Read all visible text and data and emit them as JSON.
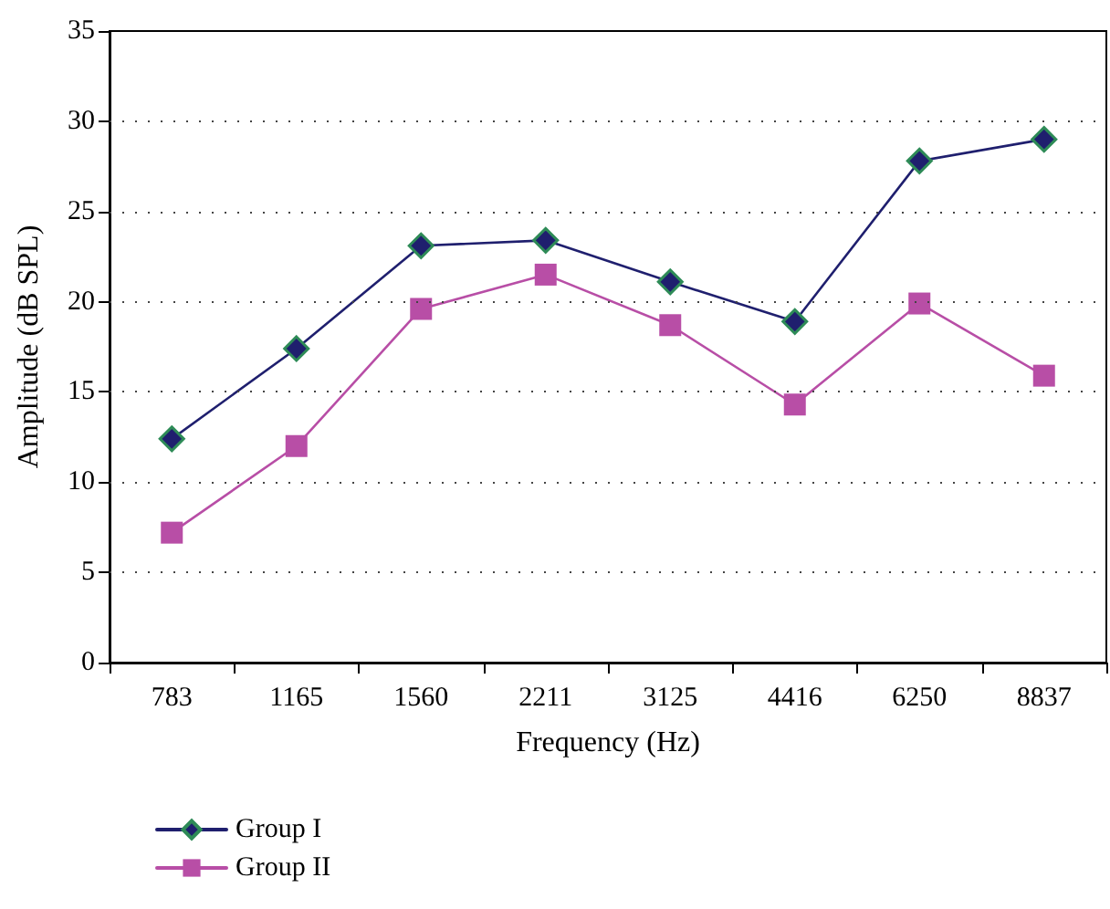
{
  "chart_data": {
    "type": "line",
    "xlabel": "Frequency (Hz)",
    "ylabel": "Amplitude (dB SPL)",
    "categories": [
      "783",
      "1165",
      "1560",
      "2211",
      "3125",
      "4416",
      "6250",
      "8837"
    ],
    "series": [
      {
        "name": "Group I",
        "color": "#1f1f6e",
        "marker": "diamond",
        "values": [
          12.4,
          17.4,
          23.1,
          23.4,
          21.1,
          18.9,
          27.8,
          29.0
        ]
      },
      {
        "name": "Group II",
        "color": "#b84ea6",
        "marker": "square",
        "values": [
          7.2,
          12.0,
          19.6,
          21.5,
          18.7,
          14.3,
          19.9,
          15.9
        ]
      }
    ],
    "ylim": [
      0,
      35
    ],
    "yticks": [
      0,
      5,
      10,
      15,
      20,
      25,
      30,
      35
    ],
    "grid": "y",
    "legend": "bottom left",
    "line_style": "solid"
  }
}
